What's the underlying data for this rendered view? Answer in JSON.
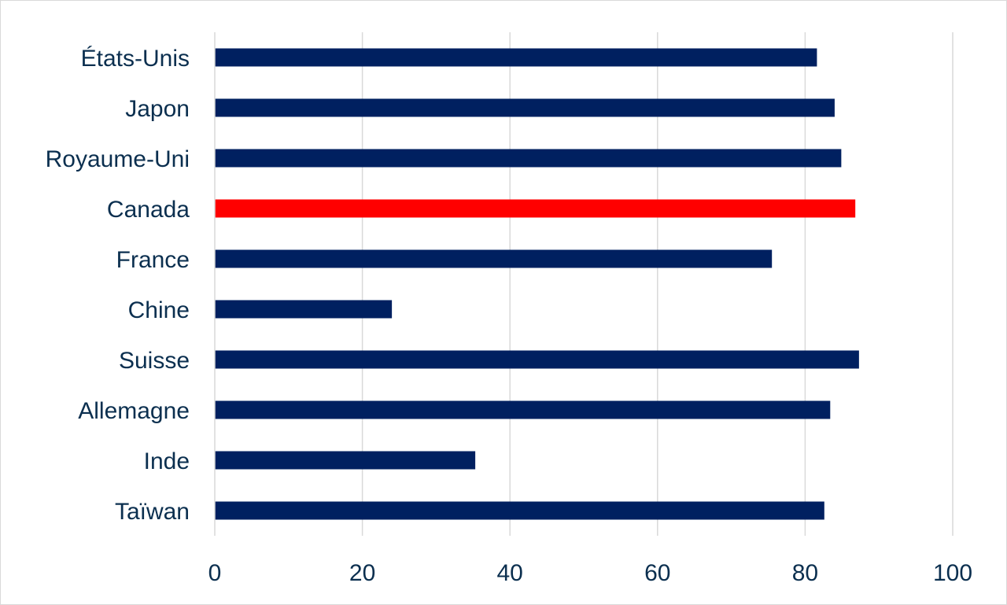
{
  "chart_data": {
    "type": "bar",
    "orientation": "horizontal",
    "categories": [
      "États-Unis",
      "Japon",
      "Royaume-Uni",
      "Canada",
      "France",
      "Chine",
      "Suisse",
      "Allemagne",
      "Inde",
      "Taïwan"
    ],
    "values": [
      81.6,
      84.0,
      84.9,
      86.8,
      75.5,
      24.0,
      87.3,
      83.4,
      35.3,
      82.6
    ],
    "highlight": "Canada",
    "xlim": [
      0,
      100
    ],
    "xticks": [
      0,
      20,
      40,
      60,
      80,
      100
    ],
    "title": "",
    "xlabel": "",
    "ylabel": "",
    "grid": "vertical",
    "legend": "none",
    "colors": {
      "bar": "#002060",
      "highlight": "#ff0000",
      "grid": "#d9d9d9",
      "text": "#0b2f4f"
    }
  }
}
